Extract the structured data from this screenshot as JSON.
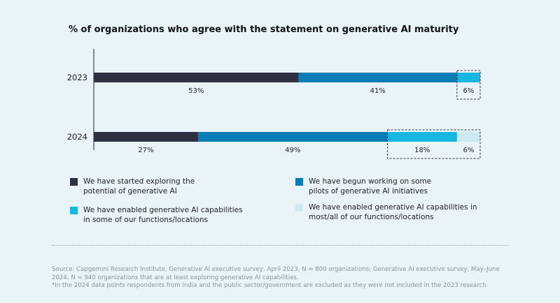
{
  "chart_data": {
    "type": "bar",
    "orientation": "horizontal",
    "stacked": true,
    "title": "% of organizations who agree with the statement on generative AI maturity",
    "categories": [
      "2023",
      "2024"
    ],
    "series": [
      {
        "name": "We have started exploring the potential of generative AI",
        "color": "#2e3142",
        "values": [
          53,
          27
        ],
        "labels": [
          "53%",
          "27%"
        ]
      },
      {
        "name": "We have begun working on some pilots of generative AI initiatives",
        "color": "#0a7cb4",
        "values": [
          41,
          49
        ],
        "labels": [
          "41%",
          "49%"
        ]
      },
      {
        "name": "We have enabled generative AI capabilities in some of our functions/locations",
        "color": "#17b7e0",
        "values": [
          6,
          18
        ],
        "labels": [
          "6%",
          "18%"
        ]
      },
      {
        "name": "We have enabled generative AI capabilities in most/all of our functions/locations",
        "color": "#cdeaf2",
        "values": [
          0,
          6
        ],
        "labels": [
          "",
          "6%"
        ]
      }
    ],
    "xlim": [
      0,
      100
    ],
    "legend_position": "bottom",
    "annotations": "dashed boxes highlight enabled-capabilities segments"
  },
  "legend": [
    {
      "line1": "We have started exploring the",
      "line2": "potential of generative AI"
    },
    {
      "line1": "We have begun working on some",
      "line2": "pilots of generative AI initiatives"
    },
    {
      "line1": "We have enabled generative AI capabilities",
      "line2": "in some of our functions/locations"
    },
    {
      "line1": "We have enabled generative AI capabilities in",
      "line2": "most/all of our functions/locations"
    }
  ],
  "source": {
    "line1": "Source: Capgemini Research Institute, Generative AI executive survey, April 2023, N = 800 organizations; Generative AI executive survey, May–June",
    "line2": "2024, N = 940 organizations that are at least exploring generative AI capabilities.",
    "line3": "*In the 2024 data points respondents from India and the public sector/government are excluded as they were not included in the 2023 research."
  }
}
